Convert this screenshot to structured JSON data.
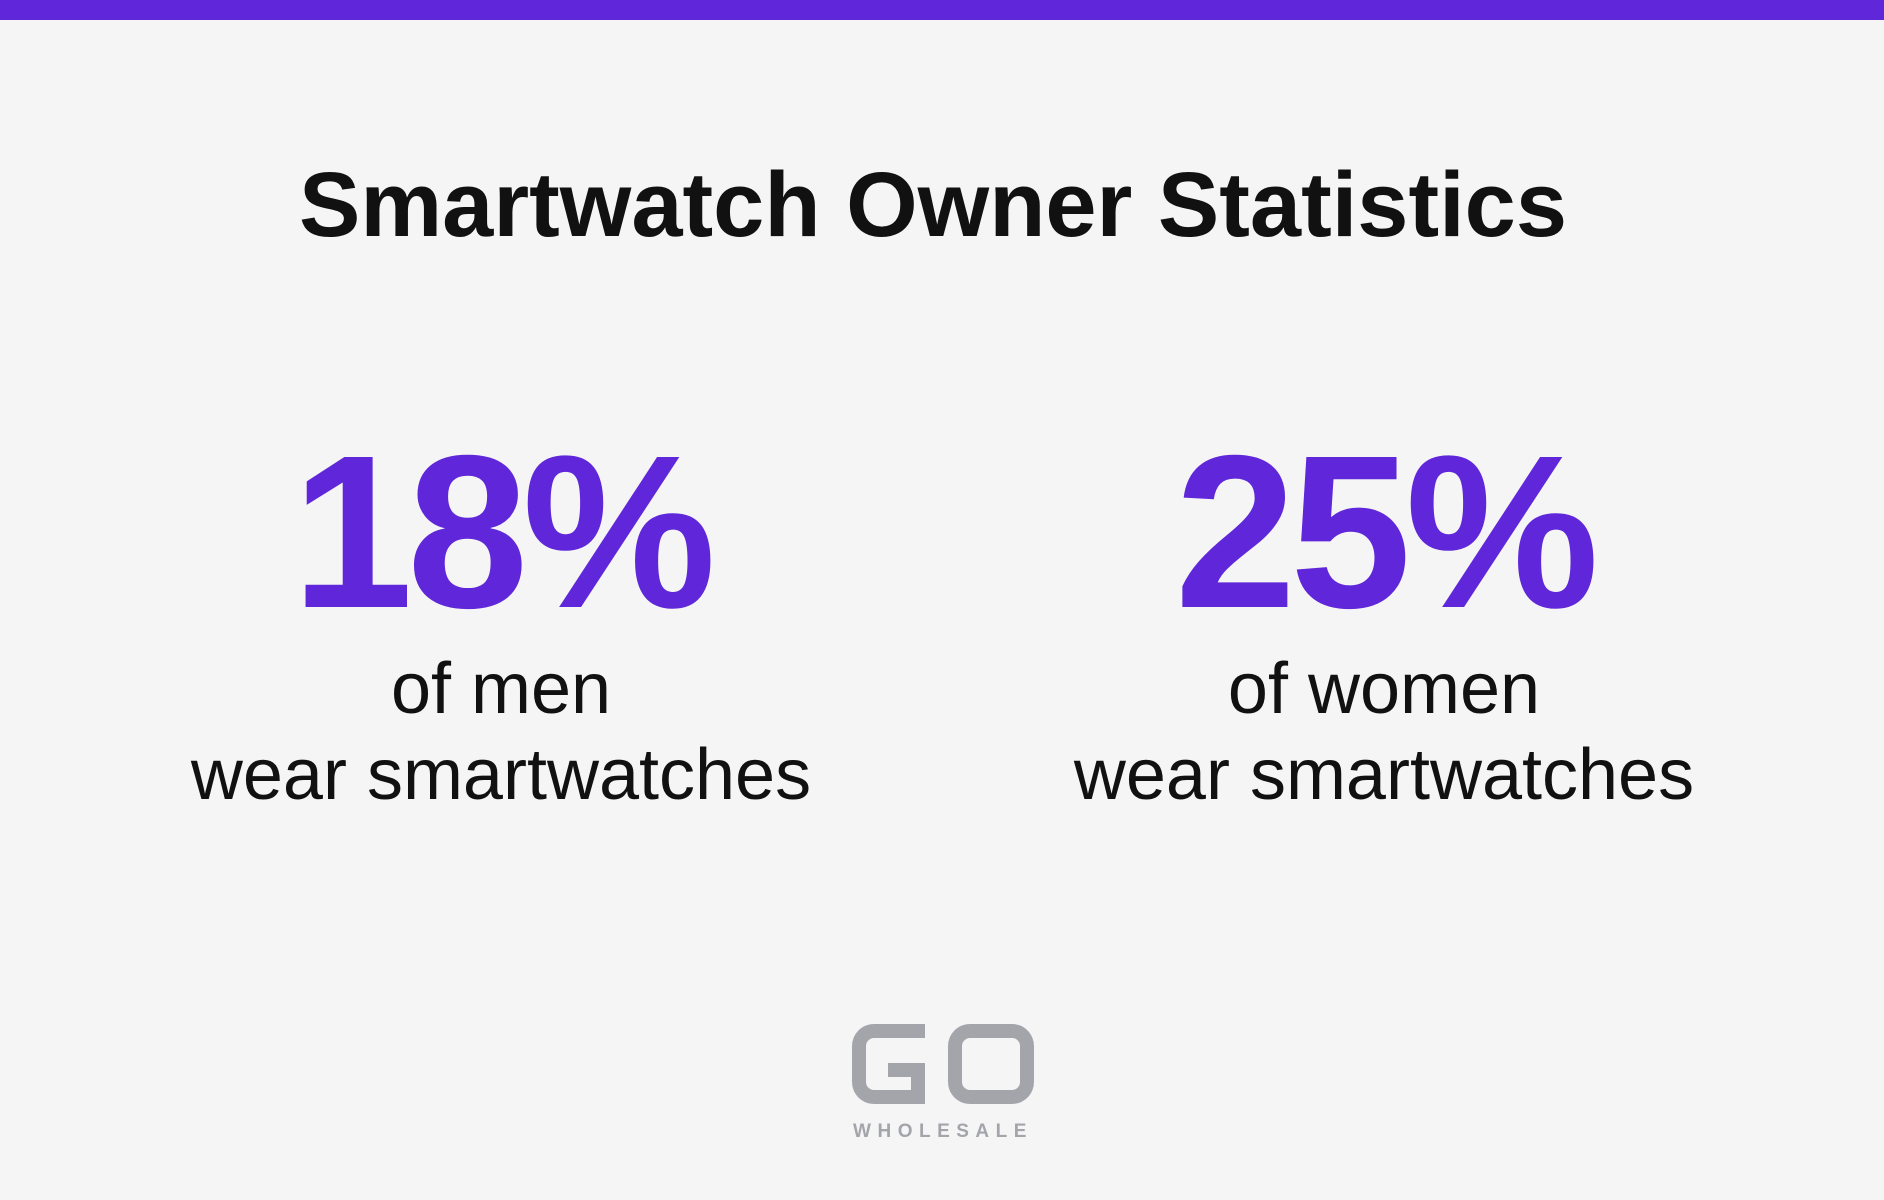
{
  "page": {
    "title": "Smartwatch Owner Statistics",
    "accent_color": "#5f27d9",
    "text_color": "#111111",
    "background_color": "#f5f5f5"
  },
  "stats": [
    {
      "value": "18%",
      "line1": "of men",
      "line2": "wear smartwatches"
    },
    {
      "value": "25%",
      "line1": "of women",
      "line2": "wear smartwatches"
    }
  ],
  "logo": {
    "mark": "GO",
    "wordmark": "WHOLESALE",
    "color": "#a3a5ab"
  }
}
